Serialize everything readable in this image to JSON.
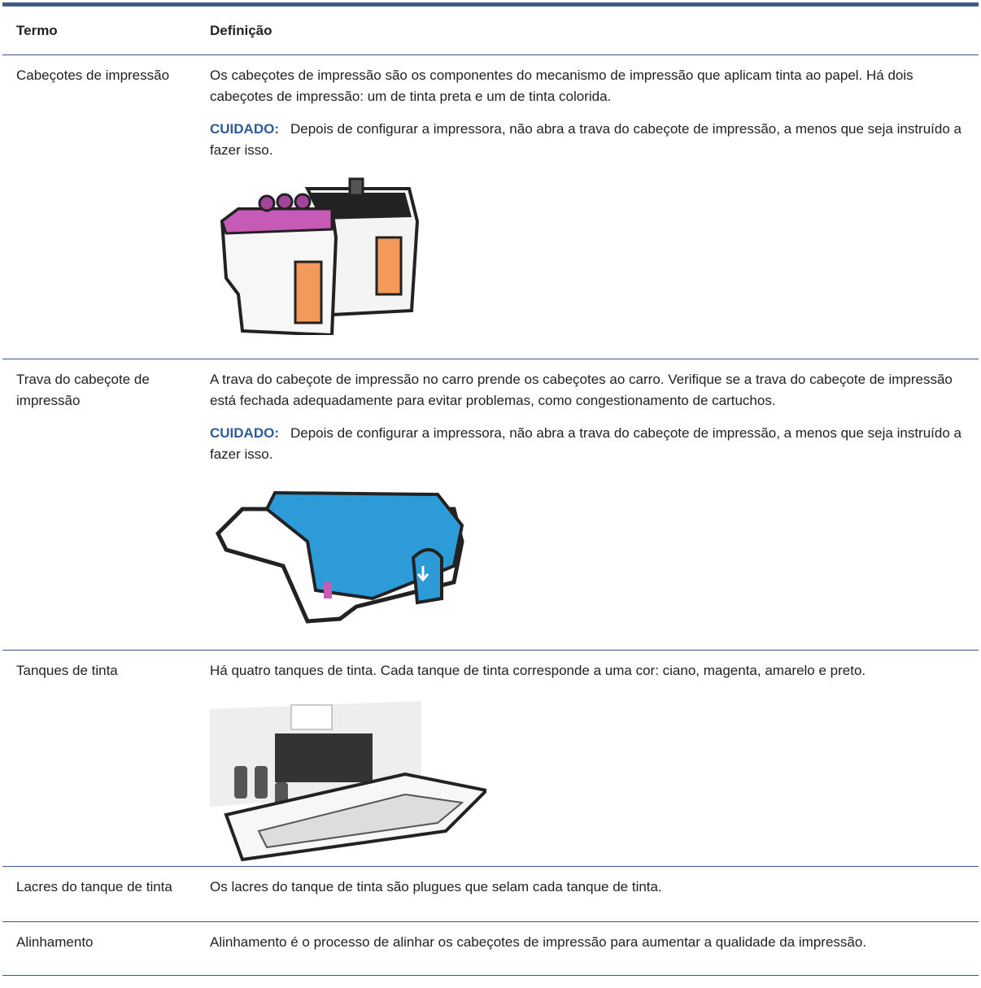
{
  "table": {
    "header": [
      "Termo",
      "Definição"
    ],
    "rows": [
      {
        "term": "Cabeçotes de impressão",
        "definition": "Os cabeçotes de impressão são os componentes do mecanismo de impressão que aplicam tinta ao papel. Há dois cabeçotes de impressão: um de tinta preta e um de tinta colorida.",
        "caution": {
          "label": "CUIDADO:",
          "text": "Depois de configurar a impressora, não abra a trava do cabeçote de impressão, a menos que seja instruído a fazer isso."
        }
      },
      {
        "term": "Trava do cabeçote de impressão",
        "definition": "A trava do cabeçote de impressão no carro prende os cabeçotes ao carro. Verifique se a trava do cabeçote de impressão está fechada adequadamente para evitar problemas, como congestionamento de cartuchos.",
        "caution": {
          "label": "CUIDADO:",
          "text": "Depois de configurar a impressora, não abra a trava do cabeçote de impressão, a menos que seja instruído a fazer isso."
        }
      },
      {
        "term": "Tanques de tinta",
        "definition": "Há quatro tanques de tinta. Cada tanque de tinta corresponde a uma cor: ciano, magenta, amarelo e preto."
      },
      {
        "term": "Lacres do tanque de tinta",
        "definition": "Os lacres do tanque de tinta são plugues que selam cada tanque de tinta."
      },
      {
        "term": "Alinhamento",
        "definition": "Alinhamento é o processo de alinhar os cabeçotes de impressão para aumentar a qualidade da impressão."
      }
    ]
  }
}
